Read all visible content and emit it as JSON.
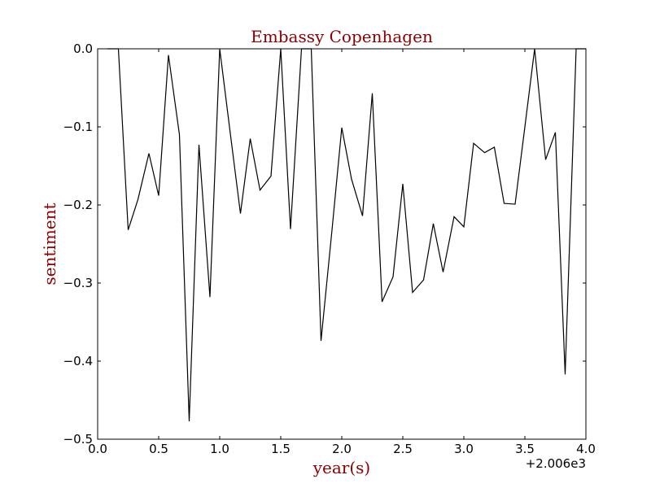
{
  "chart_data": {
    "type": "line",
    "title": "Embassy Copenhagen",
    "xlabel": "year(s)",
    "ylabel": "sentiment",
    "x_offset_label": "+2.006e3",
    "xlim": [
      0.0,
      4.0
    ],
    "ylim": [
      -0.5,
      0.0
    ],
    "xticks": [
      0.0,
      0.5,
      1.0,
      1.5,
      2.0,
      2.5,
      3.0,
      3.5,
      4.0
    ],
    "xtick_labels": [
      "0.0",
      "0.5",
      "1.0",
      "1.5",
      "2.0",
      "2.5",
      "3.0",
      "3.5",
      "4.0"
    ],
    "yticks": [
      0.0,
      -0.1,
      -0.2,
      -0.3,
      -0.4,
      -0.5
    ],
    "ytick_labels": [
      "0.0",
      "−0.1",
      "−0.2",
      "−0.3",
      "−0.4",
      "−0.5"
    ],
    "grid": false,
    "line_color": "#000000",
    "title_color": "#8b0000",
    "label_color": "#8b0000",
    "series": [
      {
        "x": [
          0.08,
          0.17,
          0.25,
          0.33,
          0.42,
          0.5,
          0.58,
          0.67,
          0.75,
          0.83,
          0.92,
          1.0,
          1.08,
          1.17,
          1.25,
          1.33,
          1.42,
          1.5,
          1.58,
          1.67,
          1.75,
          1.83,
          1.92,
          2.0,
          2.08,
          2.17,
          2.25,
          2.33,
          2.42,
          2.5,
          2.58,
          2.67,
          2.75,
          2.83,
          2.92,
          3.0,
          3.08,
          3.17,
          3.25,
          3.33,
          3.42,
          3.5,
          3.58,
          3.67,
          3.75,
          3.83,
          3.92,
          4.0
        ],
        "y": [
          0.0,
          0.0,
          -0.232,
          -0.193,
          -0.134,
          -0.188,
          -0.008,
          -0.11,
          -0.477,
          -0.123,
          -0.318,
          0.0,
          -0.1,
          -0.211,
          -0.115,
          -0.181,
          -0.163,
          0.0,
          -0.231,
          0.0,
          0.0,
          -0.374,
          -0.232,
          -0.101,
          -0.167,
          -0.214,
          -0.057,
          -0.324,
          -0.292,
          -0.173,
          -0.312,
          -0.296,
          -0.224,
          -0.286,
          -0.215,
          -0.228,
          -0.121,
          -0.133,
          -0.126,
          -0.198,
          -0.199,
          -0.1,
          0.0,
          -0.142,
          -0.107,
          -0.417,
          0.0,
          0.0
        ]
      }
    ]
  }
}
